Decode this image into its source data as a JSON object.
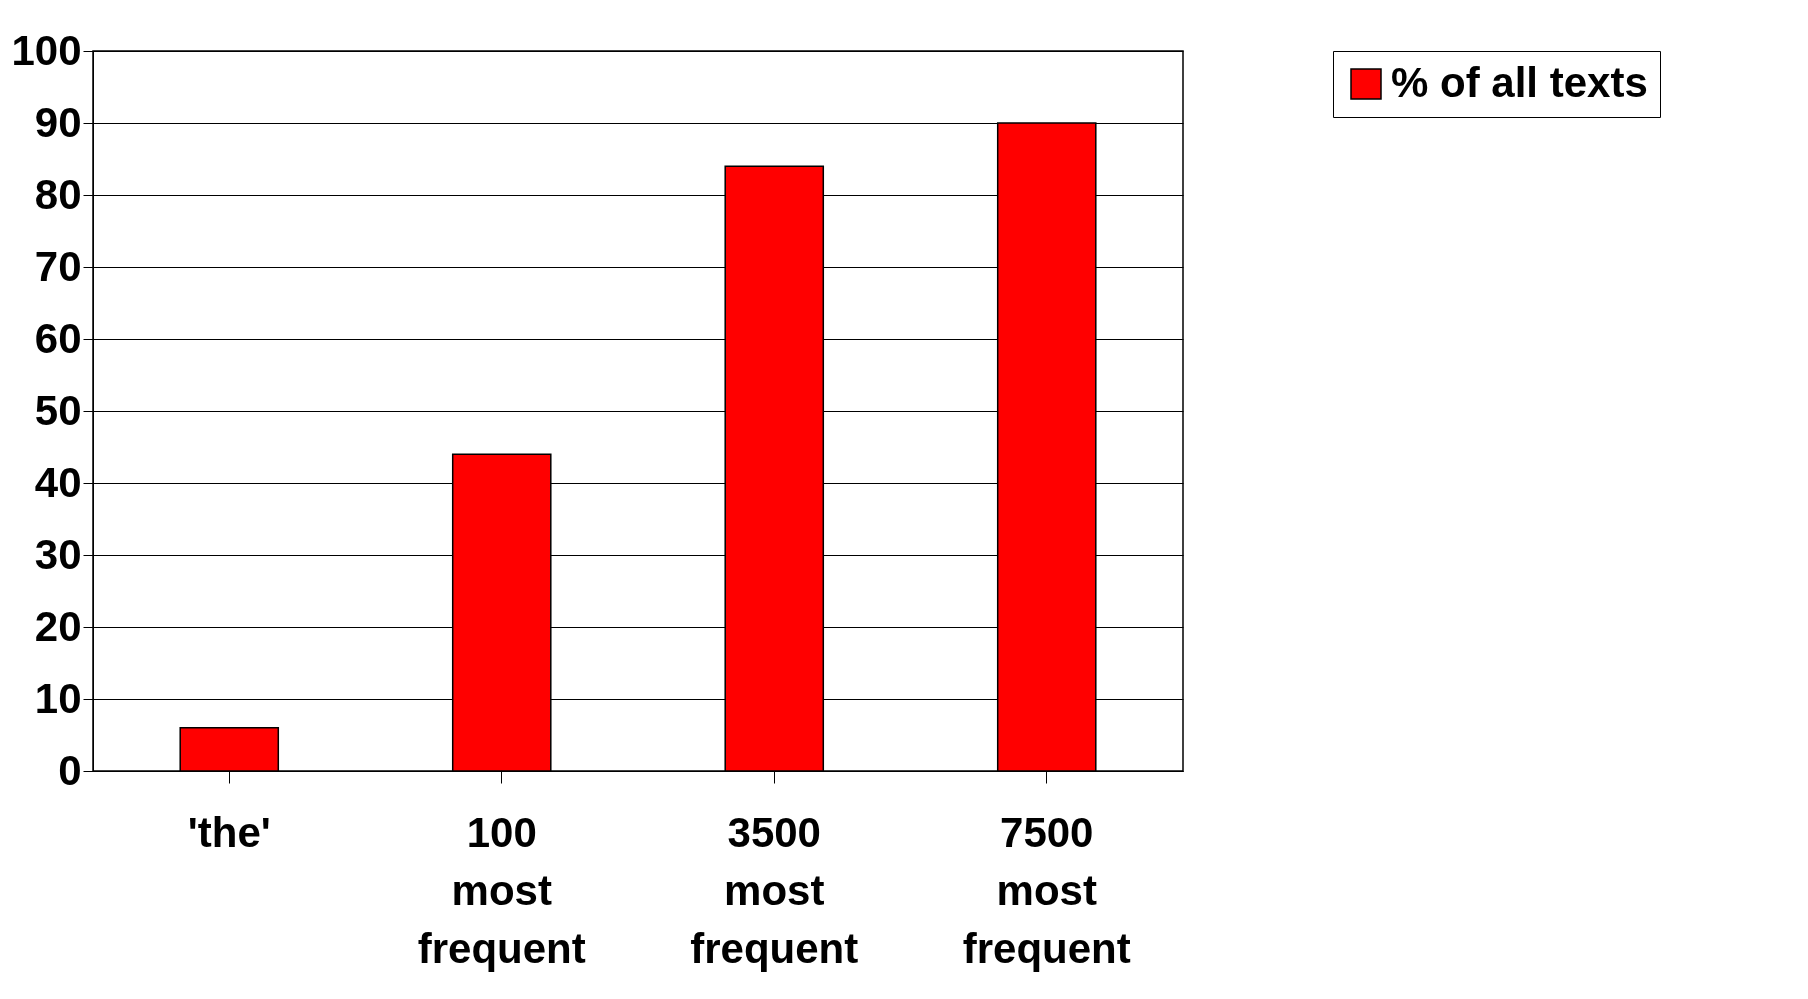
{
  "chart_data": {
    "type": "bar",
    "categories": [
      "'the'",
      "100 most frequent",
      "3500 most frequent",
      "7500 most frequent"
    ],
    "series": [
      {
        "name": "% of all texts",
        "color": "#ff0000",
        "values": [
          6,
          44,
          84,
          90
        ]
      }
    ],
    "ylim": [
      0,
      100
    ],
    "yticks": [
      0,
      10,
      20,
      30,
      40,
      50,
      60,
      70,
      80,
      90,
      100
    ],
    "grid": "y",
    "legend": "right"
  }
}
